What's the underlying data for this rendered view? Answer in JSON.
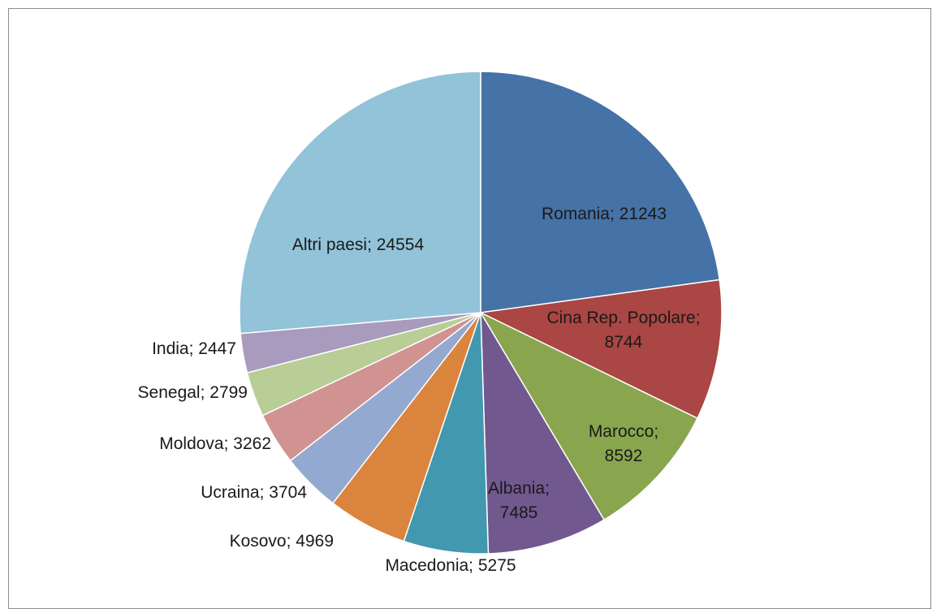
{
  "chart_data": {
    "type": "pie",
    "title": "",
    "slices": [
      {
        "label": "Romania",
        "value": 21243,
        "color": "#4572a7",
        "text_lines": [
          "Romania; 21243"
        ]
      },
      {
        "label": "Cina Rep. Popolare",
        "value": 8744,
        "color": "#aa4643",
        "text_lines": [
          "Cina Rep. Popolare;",
          "8744"
        ]
      },
      {
        "label": "Marocco",
        "value": 8592,
        "color": "#89a54e",
        "text_lines": [
          "Marocco;",
          "8592"
        ]
      },
      {
        "label": "Albania",
        "value": 7485,
        "color": "#71588f",
        "text_lines": [
          "Albania;",
          "7485"
        ]
      },
      {
        "label": "Macedonia",
        "value": 5275,
        "color": "#4198af",
        "text_lines": [
          "Macedonia; 5275"
        ]
      },
      {
        "label": "Kosovo",
        "value": 4969,
        "color": "#db843d",
        "text_lines": [
          "Kosovo; 4969"
        ]
      },
      {
        "label": "Ucraina",
        "value": 3704,
        "color": "#93a9cf",
        "text_lines": [
          "Ucraina; 3704"
        ]
      },
      {
        "label": "Moldova",
        "value": 3262,
        "color": "#d19392",
        "text_lines": [
          "Moldova; 3262"
        ]
      },
      {
        "label": "Senegal",
        "value": 2799,
        "color": "#b9cd96",
        "text_lines": [
          "Senegal; 2799"
        ]
      },
      {
        "label": "India",
        "value": 2447,
        "color": "#a99bbd",
        "text_lines": [
          "India; 2447"
        ]
      },
      {
        "label": "Altri paesi",
        "value": 24554,
        "color": "#92c3d8",
        "text_lines": [
          "Altri paesi; 24554"
        ]
      }
    ]
  }
}
